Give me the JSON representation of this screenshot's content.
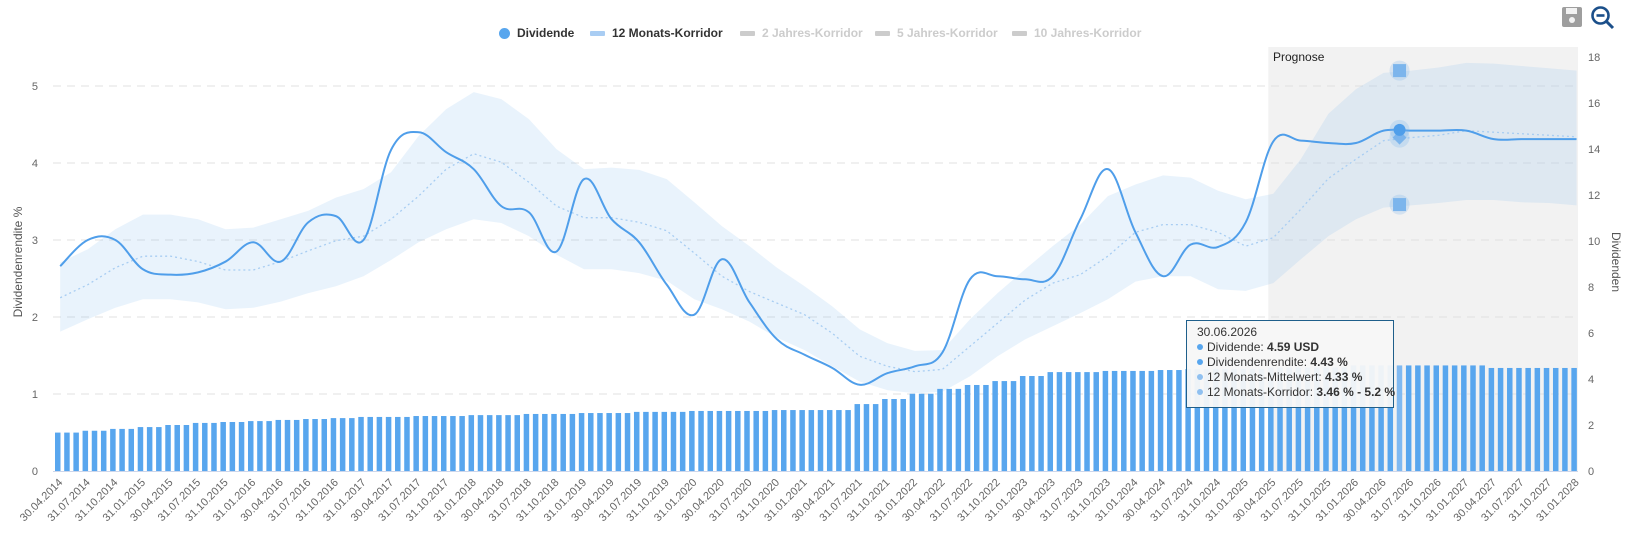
{
  "toolbar": {
    "save_icon": "floppy-disk-icon",
    "zoom_out_icon": "magnifier-minus-icon"
  },
  "legend": [
    {
      "label": "Dividende",
      "symbol": "circle",
      "color": "#58a6ee",
      "active": true
    },
    {
      "label": "12 Monats-Korridor",
      "symbol": "bar",
      "color": "#a9cdf3",
      "active": true
    },
    {
      "label": "2 Jahres-Korridor",
      "symbol": "bar",
      "color": "#cccccc",
      "active": false
    },
    {
      "label": "5 Jahres-Korridor",
      "symbol": "bar",
      "color": "#cccccc",
      "active": false
    },
    {
      "label": "10 Jahres-Korridor",
      "symbol": "bar",
      "color": "#cccccc",
      "active": false
    }
  ],
  "tooltip": {
    "date": "30.06.2026",
    "rows": [
      {
        "label": "Dividende: ",
        "value": "4.59 USD"
      },
      {
        "label": "Dividendenrendite: ",
        "value": "4.43 %"
      },
      {
        "label": "12 Monats-Mittelwert: ",
        "value": "4.33 %"
      },
      {
        "label": "12 Monats-Korridor: ",
        "value": "3.46 % - 5.2 %"
      }
    ]
  },
  "chart_data": {
    "type": "line+bar",
    "xlabel": "",
    "ylabel_left": "Dividendenrendite %",
    "ylabel_right": "Dividenden",
    "ylim_left": [
      0,
      5
    ],
    "yticks_left": [
      0,
      1,
      2,
      3,
      4,
      5
    ],
    "ylim_right": [
      0,
      18
    ],
    "yticks_right": [
      0,
      2,
      4,
      6,
      8,
      10,
      12,
      14,
      16,
      18
    ],
    "grid": true,
    "legend_position": "top",
    "prognose_label": "Prognose",
    "prognose_from": "30.04.2025",
    "highlight": {
      "date": "30.06.2026",
      "dividend": 4.59,
      "yield": 4.43,
      "mean": 4.33,
      "corridor": [
        3.46,
        5.2
      ]
    },
    "colors": {
      "line": "#4f9eea",
      "bars": "#58a6ee",
      "bar_highlight": "#80b9f1",
      "corridor": "#e9f2fc",
      "mean": "#a8cdf2",
      "prognose_bg": "#f2f2f2"
    },
    "categories": [
      "30.04.2014",
      "31.07.2014",
      "31.10.2014",
      "31.01.2015",
      "30.04.2015",
      "31.07.2015",
      "31.10.2015",
      "31.01.2016",
      "30.04.2016",
      "31.07.2016",
      "31.10.2016",
      "31.01.2017",
      "30.04.2017",
      "31.07.2017",
      "31.10.2017",
      "31.01.2018",
      "30.04.2018",
      "31.07.2018",
      "31.10.2018",
      "31.01.2019",
      "30.04.2019",
      "31.07.2019",
      "31.10.2019",
      "31.01.2020",
      "30.04.2020",
      "31.07.2020",
      "31.10.2020",
      "31.01.2021",
      "30.04.2021",
      "31.07.2021",
      "31.10.2021",
      "31.01.2022",
      "30.04.2022",
      "31.07.2022",
      "31.10.2022",
      "31.01.2023",
      "30.04.2023",
      "31.07.2023",
      "31.10.2023",
      "31.01.2024",
      "30.04.2024",
      "31.07.2024",
      "31.10.2024",
      "31.01.2025",
      "30.04.2025",
      "31.07.2025",
      "31.10.2025",
      "31.01.2026",
      "30.04.2026",
      "31.07.2026",
      "31.10.2026",
      "31.01.2027",
      "30.04.2027",
      "31.07.2027",
      "31.10.2027",
      "31.01.2028"
    ],
    "series": [
      {
        "name": "Dividendenrendite",
        "axis": "left",
        "kind": "line",
        "values": [
          2.66,
          3.0,
          3.0,
          2.62,
          2.55,
          2.58,
          2.72,
          2.97,
          2.72,
          3.23,
          3.31,
          3.0,
          4.17,
          4.4,
          4.14,
          3.92,
          3.44,
          3.36,
          2.85,
          3.79,
          3.27,
          2.97,
          2.42,
          2.03,
          2.75,
          2.19,
          1.71,
          1.51,
          1.34,
          1.12,
          1.27,
          1.36,
          1.54,
          2.49,
          2.53,
          2.49,
          2.53,
          3.27,
          3.92,
          3.1,
          2.53,
          2.94,
          2.91,
          3.23,
          4.28,
          4.29,
          4.26,
          4.26,
          4.42,
          4.42,
          4.42,
          4.42,
          4.31,
          4.31,
          4.31,
          4.31
        ]
      },
      {
        "name": "12 Monats-Mittelwert",
        "axis": "left",
        "kind": "dotted-line",
        "values": [
          2.25,
          2.42,
          2.64,
          2.79,
          2.79,
          2.72,
          2.61,
          2.61,
          2.72,
          2.86,
          2.99,
          3.05,
          3.27,
          3.57,
          3.92,
          4.12,
          4.01,
          3.75,
          3.44,
          3.29,
          3.29,
          3.23,
          3.12,
          2.83,
          2.53,
          2.33,
          2.18,
          2.03,
          1.79,
          1.49,
          1.36,
          1.29,
          1.32,
          1.62,
          1.92,
          2.22,
          2.44,
          2.55,
          2.79,
          3.1,
          3.2,
          3.2,
          3.1,
          2.92,
          3.03,
          3.4,
          3.8,
          4.05,
          4.29,
          4.33,
          4.36,
          4.42,
          4.4,
          4.38,
          4.36,
          4.34
        ]
      },
      {
        "name": "12 Monats-Korridor",
        "axis": "left",
        "kind": "band",
        "upper": [
          2.71,
          2.88,
          3.14,
          3.33,
          3.33,
          3.27,
          3.14,
          3.16,
          3.27,
          3.38,
          3.55,
          3.66,
          3.88,
          4.35,
          4.7,
          4.92,
          4.83,
          4.57,
          4.18,
          3.92,
          3.94,
          3.91,
          3.79,
          3.49,
          3.18,
          2.92,
          2.64,
          2.4,
          2.14,
          1.84,
          1.66,
          1.56,
          1.57,
          1.97,
          2.31,
          2.62,
          2.92,
          3.2,
          3.57,
          3.72,
          3.84,
          3.81,
          3.64,
          3.53,
          3.6,
          4.05,
          4.64,
          4.96,
          5.17,
          5.2,
          5.24,
          5.3,
          5.29,
          5.26,
          5.23,
          5.2
        ],
        "lower": [
          1.81,
          1.97,
          2.12,
          2.23,
          2.23,
          2.19,
          2.1,
          2.12,
          2.2,
          2.31,
          2.4,
          2.53,
          2.74,
          2.97,
          3.14,
          3.27,
          3.22,
          3.05,
          2.81,
          2.62,
          2.62,
          2.57,
          2.47,
          2.23,
          2.1,
          1.94,
          1.73,
          1.57,
          1.36,
          1.16,
          1.05,
          1.01,
          1.03,
          1.23,
          1.49,
          1.71,
          1.88,
          2.05,
          2.23,
          2.46,
          2.53,
          2.53,
          2.36,
          2.34,
          2.44,
          2.75,
          3.05,
          3.27,
          3.42,
          3.45,
          3.48,
          3.52,
          3.52,
          3.49,
          3.48,
          3.45
        ]
      },
      {
        "name": "Dividende",
        "axis": "right",
        "kind": "monthly-bars",
        "unit": "USD",
        "values": [
          1.67,
          1.75,
          1.83,
          1.91,
          2.0,
          2.09,
          2.13,
          2.17,
          2.22,
          2.26,
          2.3,
          2.35,
          2.35,
          2.39,
          2.39,
          2.43,
          2.43,
          2.48,
          2.48,
          2.52,
          2.52,
          2.57,
          2.57,
          2.61,
          2.61,
          2.61,
          2.65,
          2.65,
          2.65,
          2.91,
          3.13,
          3.36,
          3.57,
          3.74,
          3.91,
          4.13,
          4.3,
          4.3,
          4.35,
          4.35,
          4.39,
          4.43,
          4.43,
          4.43,
          4.5,
          4.5,
          4.5,
          4.59,
          4.59,
          4.59,
          4.59,
          4.59,
          4.48,
          4.48,
          4.48,
          4.48
        ]
      }
    ]
  }
}
